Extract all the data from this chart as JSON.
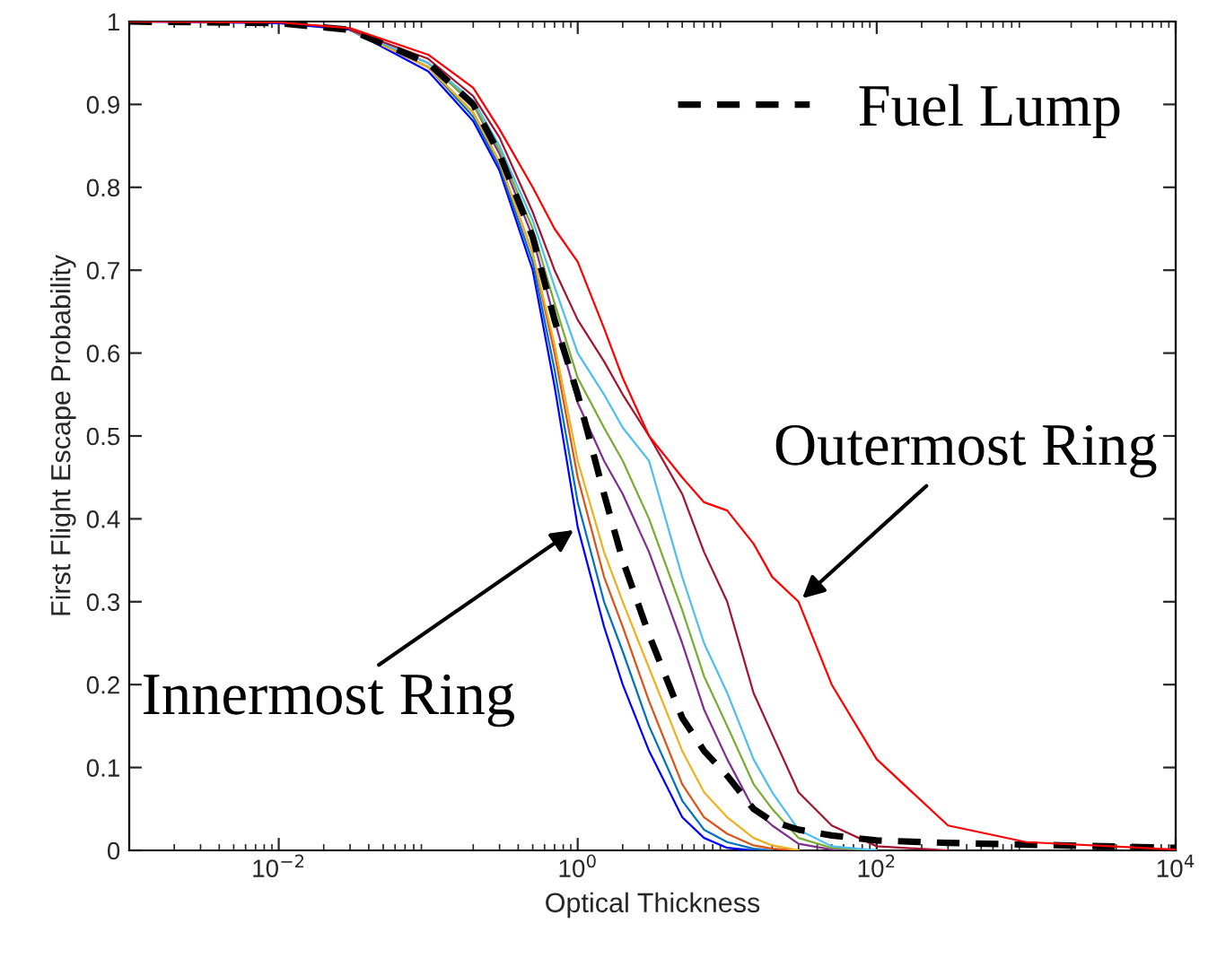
{
  "chart_data": {
    "type": "line",
    "xlabel": "Optical Thickness",
    "ylabel": "First Flight Escape Probability",
    "log": "x",
    "xlim": [
      0.001,
      10000
    ],
    "xticks": [
      {
        "value": 0.01,
        "label": "10$^{−2}$"
      },
      {
        "value": 1,
        "label": "10$^{0}$"
      },
      {
        "value": 100,
        "label": "10$^{2}$"
      },
      {
        "value": 10000,
        "label": "10$^{4}$"
      }
    ],
    "ylim": [
      0,
      1
    ],
    "yticks": [
      0,
      0.1,
      0.2,
      0.3,
      0.4,
      0.5,
      0.6,
      0.7,
      0.8,
      0.9,
      1
    ],
    "grid": false,
    "legend": "top right",
    "marker": "none",
    "x": [
      0.001,
      0.01,
      0.03,
      0.1,
      0.2,
      0.3,
      0.5,
      0.7,
      1,
      1.5,
      2,
      3,
      5,
      7,
      10,
      15,
      20,
      30,
      50,
      100,
      300,
      1000,
      10000
    ],
    "series": [
      {
        "color": "#0000ff",
        "values": [
          1,
          0.998,
          0.99,
          0.94,
          0.88,
          0.82,
          0.7,
          0.56,
          0.39,
          0.27,
          0.2,
          0.12,
          0.04,
          0.015,
          0.003,
          0,
          null,
          null,
          null,
          null,
          null,
          null,
          null
        ]
      },
      {
        "color": "#0072bd",
        "values": [
          null,
          null,
          0.99,
          0.945,
          0.885,
          0.825,
          0.71,
          0.58,
          0.42,
          0.3,
          0.24,
          0.15,
          0.06,
          0.025,
          0.01,
          0.002,
          0,
          null,
          null,
          null,
          null,
          null,
          null
        ]
      },
      {
        "color": "#d95319",
        "values": [
          null,
          null,
          0.99,
          0.945,
          0.89,
          0.83,
          0.72,
          0.6,
          0.45,
          0.33,
          0.27,
          0.18,
          0.08,
          0.04,
          0.02,
          0.006,
          0.002,
          0,
          null,
          null,
          null,
          null,
          null
        ]
      },
      {
        "color": "#edb120",
        "values": [
          null,
          null,
          0.99,
          0.945,
          0.89,
          0.83,
          0.72,
          0.61,
          0.47,
          0.36,
          0.3,
          0.22,
          0.12,
          0.07,
          0.04,
          0.015,
          0.006,
          0,
          null,
          null,
          null,
          null,
          null
        ]
      },
      {
        "color": "#7e2f8e",
        "values": [
          null,
          null,
          0.99,
          0.95,
          0.9,
          0.84,
          0.74,
          0.64,
          0.54,
          0.47,
          0.43,
          0.36,
          0.25,
          0.17,
          0.11,
          0.05,
          0.03,
          0.008,
          0.001,
          0,
          null,
          null,
          null
        ]
      },
      {
        "color": "#77ac30",
        "values": [
          null,
          null,
          0.99,
          0.95,
          0.9,
          0.845,
          0.75,
          0.66,
          0.57,
          0.51,
          0.47,
          0.4,
          0.29,
          0.21,
          0.15,
          0.08,
          0.05,
          0.015,
          0.003,
          0,
          null,
          null,
          null
        ]
      },
      {
        "color": "#4dbeee",
        "values": [
          null,
          null,
          0.99,
          0.95,
          0.905,
          0.85,
          0.76,
          0.68,
          0.6,
          0.55,
          0.51,
          0.47,
          0.33,
          0.25,
          0.19,
          0.11,
          0.07,
          0.025,
          0.005,
          0,
          null,
          null,
          null
        ]
      },
      {
        "color": "#a2142f",
        "values": [
          null,
          null,
          0.99,
          0.955,
          0.91,
          0.86,
          0.77,
          0.7,
          0.64,
          0.59,
          0.55,
          0.5,
          0.43,
          0.36,
          0.3,
          0.19,
          0.14,
          0.07,
          0.03,
          0.005,
          0,
          null,
          null
        ]
      },
      {
        "name": "Fuel Lump",
        "color": "#000000",
        "line_style": "dashed",
        "values": [
          1,
          0.998,
          0.99,
          0.95,
          0.9,
          0.84,
          0.74,
          0.64,
          0.55,
          0.43,
          0.35,
          0.26,
          0.16,
          0.12,
          0.09,
          0.05,
          0.035,
          0.025,
          0.018,
          0.012,
          0.009,
          0.007,
          0.003
        ]
      },
      {
        "color": "#ff0000",
        "values": [
          1,
          0.999,
          0.992,
          0.96,
          0.92,
          0.87,
          0.8,
          0.75,
          0.71,
          0.63,
          0.57,
          0.5,
          0.45,
          0.42,
          0.41,
          0.37,
          0.33,
          0.3,
          0.2,
          0.11,
          0.03,
          0.01,
          0.001
        ]
      }
    ],
    "annotations": [
      {
        "text": "Outermost Ring",
        "x": 30,
        "y": 0.3
      },
      {
        "text": "Innermost Ring",
        "x": 1,
        "y": 0.39
      }
    ]
  }
}
